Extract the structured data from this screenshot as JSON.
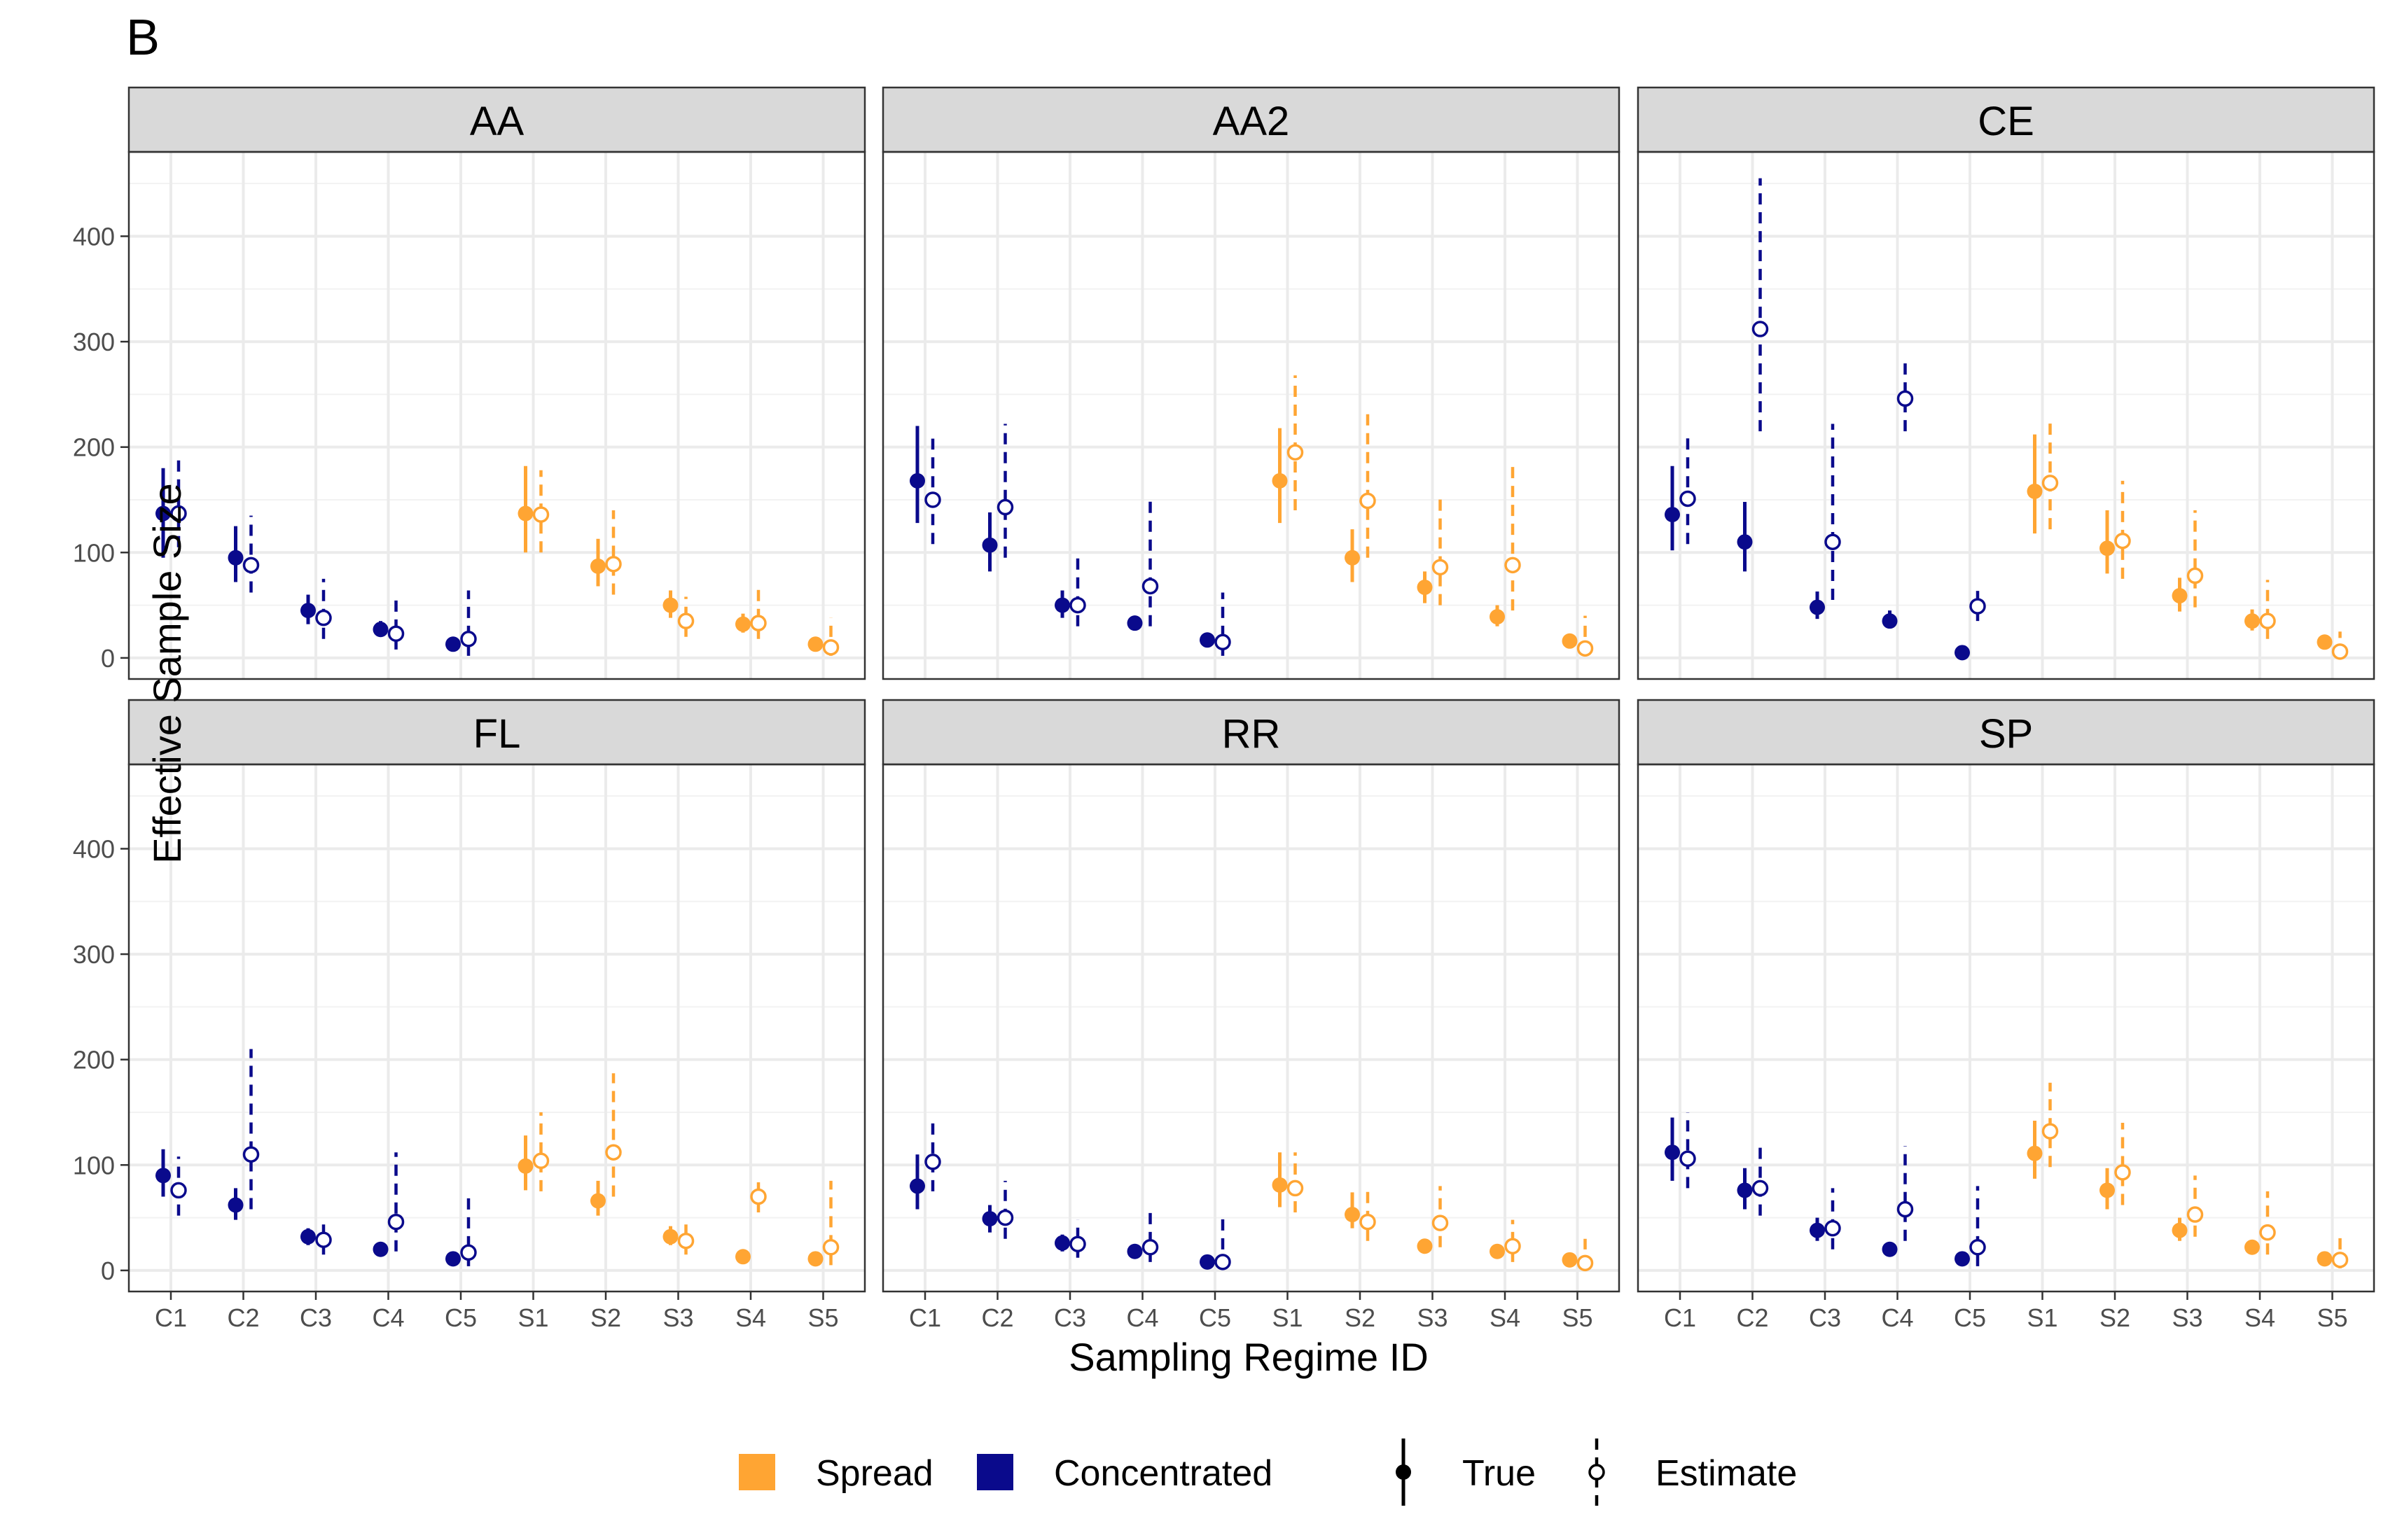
{
  "figure_label": "B",
  "chart_data": {
    "type": "scatter",
    "subtype": "point-range facets",
    "xlabel": "Sampling Regime ID",
    "ylabel": "Effective Sample Size",
    "categories": [
      "C1",
      "C2",
      "C3",
      "C4",
      "C5",
      "S1",
      "S2",
      "S3",
      "S4",
      "S5"
    ],
    "ylim": [
      -20,
      480
    ],
    "yticks": [
      0,
      100,
      200,
      300,
      400
    ],
    "grid": true,
    "legend_position": "bottom",
    "colors": {
      "Spread": "#FFA533",
      "Concentrated": "#0A0A8C"
    },
    "legend": {
      "color": [
        {
          "label": "Spread",
          "color": "#FFA533"
        },
        {
          "label": "Concentrated",
          "color": "#0A0A8C"
        }
      ],
      "type": [
        {
          "label": "True",
          "marker": "filled-circle",
          "line": "solid"
        },
        {
          "label": "Estimate",
          "marker": "open-circle",
          "line": "dashed"
        }
      ]
    },
    "panels": [
      {
        "name": "AA",
        "true": [
          [
            137,
            95,
            180
          ],
          [
            95,
            72,
            125
          ],
          [
            45,
            32,
            60
          ],
          [
            27,
            20,
            35
          ],
          [
            13,
            8,
            18
          ],
          [
            137,
            100,
            182
          ],
          [
            87,
            68,
            113
          ],
          [
            50,
            38,
            64
          ],
          [
            32,
            24,
            42
          ],
          [
            13,
            8,
            18
          ]
        ],
        "estimate": [
          [
            137,
            105,
            192
          ],
          [
            88,
            62,
            135
          ],
          [
            38,
            18,
            75
          ],
          [
            23,
            8,
            58
          ],
          [
            18,
            2,
            64
          ],
          [
            136,
            100,
            178
          ],
          [
            89,
            60,
            140
          ],
          [
            35,
            20,
            58
          ],
          [
            33,
            18,
            67
          ],
          [
            10,
            2,
            38
          ]
        ]
      },
      {
        "name": "AA2",
        "true": [
          [
            168,
            128,
            220
          ],
          [
            107,
            82,
            138
          ],
          [
            50,
            38,
            64
          ],
          [
            33,
            26,
            40
          ],
          [
            17,
            12,
            22
          ],
          [
            168,
            128,
            218
          ],
          [
            95,
            72,
            122
          ],
          [
            67,
            52,
            82
          ],
          [
            39,
            30,
            50
          ],
          [
            16,
            11,
            22
          ]
        ],
        "estimate": [
          [
            150,
            108,
            208
          ],
          [
            143,
            95,
            222
          ],
          [
            50,
            30,
            97
          ],
          [
            68,
            30,
            150
          ],
          [
            15,
            2,
            62
          ],
          [
            195,
            140,
            268
          ],
          [
            149,
            95,
            238
          ],
          [
            86,
            50,
            152
          ],
          [
            88,
            45,
            185
          ],
          [
            9,
            2,
            40
          ]
        ]
      },
      {
        "name": "CE",
        "true": [
          [
            136,
            102,
            182
          ],
          [
            110,
            82,
            148
          ],
          [
            48,
            37,
            63
          ],
          [
            35,
            28,
            45
          ],
          [
            5,
            2,
            8
          ],
          [
            158,
            118,
            212
          ],
          [
            104,
            80,
            140
          ],
          [
            59,
            44,
            76
          ],
          [
            35,
            26,
            46
          ],
          [
            15,
            10,
            22
          ]
        ],
        "estimate": [
          [
            151,
            108,
            215
          ],
          [
            312,
            215,
            455
          ],
          [
            110,
            55,
            222
          ],
          [
            246,
            215,
            285
          ],
          [
            49,
            35,
            68
          ],
          [
            166,
            122,
            225
          ],
          [
            111,
            75,
            168
          ],
          [
            78,
            48,
            140
          ],
          [
            35,
            18,
            74
          ],
          [
            6,
            1,
            25
          ]
        ]
      },
      {
        "name": "FL",
        "true": [
          [
            90,
            70,
            115
          ],
          [
            62,
            48,
            78
          ],
          [
            32,
            24,
            40
          ],
          [
            20,
            15,
            26
          ],
          [
            11,
            6,
            16
          ],
          [
            99,
            76,
            128
          ],
          [
            66,
            52,
            85
          ],
          [
            32,
            24,
            42
          ],
          [
            13,
            9,
            18
          ],
          [
            11,
            6,
            16
          ]
        ],
        "estimate": [
          [
            76,
            52,
            108
          ],
          [
            110,
            58,
            210
          ],
          [
            29,
            15,
            50
          ],
          [
            46,
            18,
            112
          ],
          [
            17,
            4,
            75
          ],
          [
            104,
            75,
            150
          ],
          [
            112,
            70,
            187
          ],
          [
            28,
            15,
            48
          ],
          [
            70,
            55,
            90
          ],
          [
            22,
            5,
            85
          ]
        ]
      },
      {
        "name": "RR",
        "true": [
          [
            80,
            58,
            110
          ],
          [
            49,
            36,
            62
          ],
          [
            26,
            18,
            34
          ],
          [
            18,
            13,
            24
          ],
          [
            8,
            4,
            12
          ],
          [
            81,
            60,
            112
          ],
          [
            53,
            40,
            74
          ],
          [
            23,
            16,
            30
          ],
          [
            18,
            13,
            23
          ],
          [
            10,
            6,
            14
          ]
        ],
        "estimate": [
          [
            103,
            75,
            145
          ],
          [
            50,
            30,
            85
          ],
          [
            25,
            12,
            48
          ],
          [
            22,
            8,
            56
          ],
          [
            8,
            2,
            52
          ],
          [
            78,
            55,
            112
          ],
          [
            46,
            28,
            78
          ],
          [
            45,
            22,
            80
          ],
          [
            23,
            8,
            48
          ],
          [
            7,
            2,
            30
          ]
        ]
      },
      {
        "name": "SP",
        "true": [
          [
            112,
            85,
            145
          ],
          [
            76,
            58,
            97
          ],
          [
            38,
            28,
            50
          ],
          [
            20,
            15,
            27
          ],
          [
            11,
            6,
            16
          ],
          [
            111,
            87,
            142
          ],
          [
            76,
            58,
            97
          ],
          [
            38,
            28,
            50
          ],
          [
            22,
            16,
            28
          ],
          [
            11,
            6,
            16
          ]
        ],
        "estimate": [
          [
            106,
            78,
            150
          ],
          [
            78,
            52,
            120
          ],
          [
            40,
            20,
            78
          ],
          [
            58,
            28,
            118
          ],
          [
            22,
            4,
            80
          ],
          [
            132,
            98,
            178
          ],
          [
            93,
            62,
            140
          ],
          [
            53,
            32,
            90
          ],
          [
            36,
            15,
            75
          ],
          [
            10,
            2,
            36
          ]
        ]
      }
    ]
  }
}
